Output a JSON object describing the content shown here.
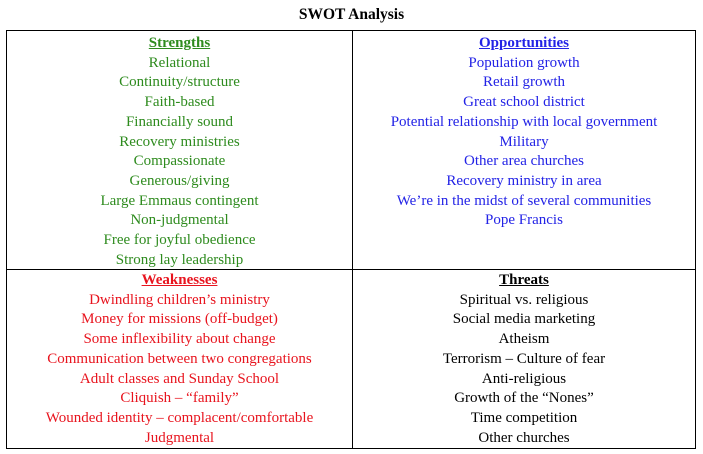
{
  "title": "SWOT Analysis",
  "colors": {
    "strengths": "#2e8b1e",
    "opportunities": "#2323e6",
    "weaknesses": "#e8141e",
    "threats": "#000000"
  },
  "strengths": {
    "heading": "Strengths",
    "items": [
      "Relational",
      "Continuity/structure",
      "Faith-based",
      "Financially sound",
      "Recovery ministries",
      "Compassionate",
      "Generous/giving",
      "Large Emmaus contingent",
      "Non-judgmental",
      "Free for joyful obedience",
      "Strong lay leadership"
    ]
  },
  "opportunities": {
    "heading": "Opportunities",
    "items": [
      "Population growth",
      "Retail growth",
      "Great school district",
      "Potential relationship with local government",
      "Military",
      "Other area churches",
      "Recovery ministry in area",
      "We’re in the midst of several communities",
      "Pope Francis"
    ]
  },
  "weaknesses": {
    "heading": "Weaknesses",
    "items": [
      "Dwindling children’s ministry",
      "Money for missions (off-budget)",
      "Some inflexibility about change",
      "Communication between two congregations",
      "Adult classes and Sunday School",
      "Cliquish – “family”",
      "Wounded identity – complacent/comfortable",
      "Judgmental"
    ]
  },
  "threats": {
    "heading": "Threats",
    "items": [
      "Spiritual vs. religious",
      "Social media marketing",
      "Atheism",
      "Terrorism – Culture of fear",
      "Anti-religious",
      "Growth of the “Nones”",
      "Time competition",
      "Other churches"
    ]
  }
}
